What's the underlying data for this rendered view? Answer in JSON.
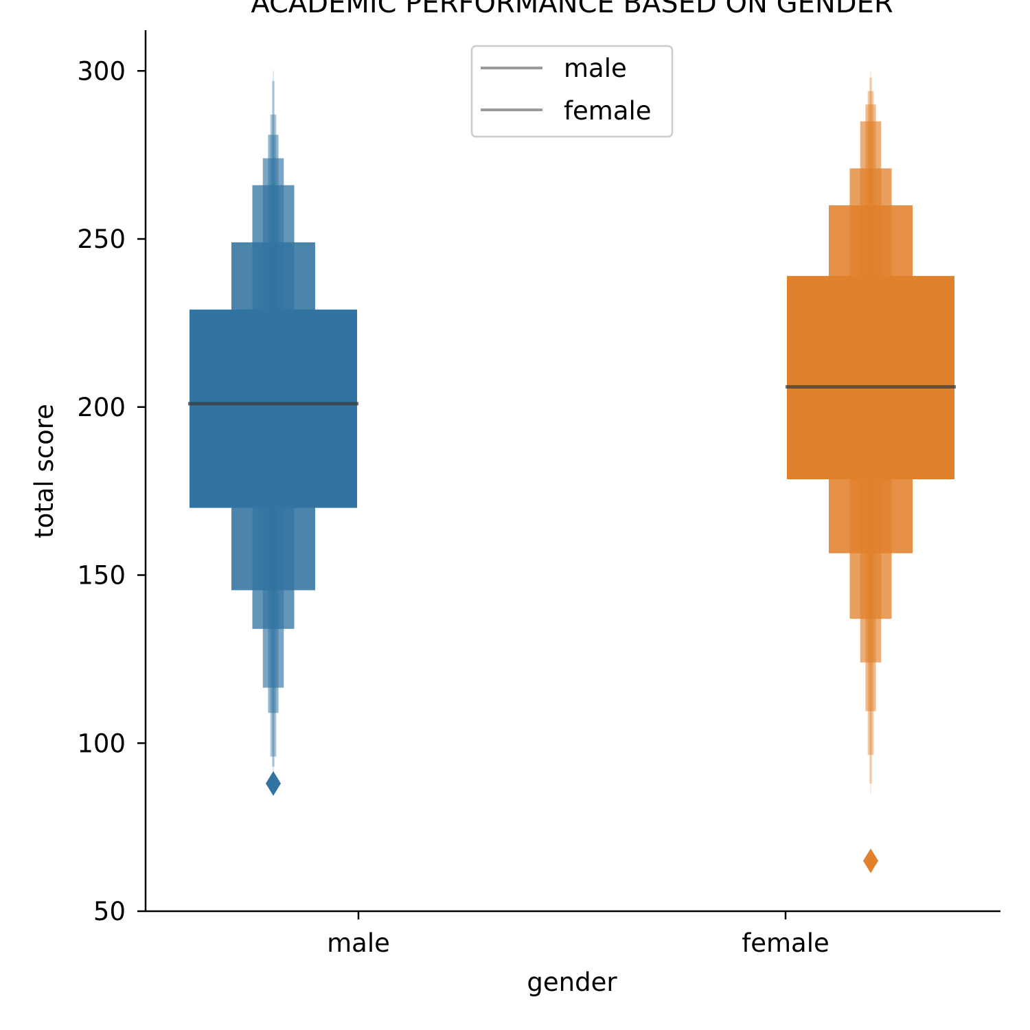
{
  "chart_data": {
    "type": "boxen",
    "title": "ACADEMIC PERFORMANCE BASED ON GENDER",
    "xlabel": "gender",
    "ylabel": "total score",
    "categories": [
      "male",
      "female"
    ],
    "ylim": [
      50,
      312
    ],
    "yticks": [
      50,
      100,
      150,
      200,
      250,
      300
    ],
    "grid": false,
    "legend": {
      "placement": "top-center",
      "entries": [
        "male",
        "female"
      ],
      "line_color": "#999999"
    },
    "series": [
      {
        "category": "male",
        "color": "#3274a1",
        "median": 201,
        "levels": [
          {
            "lo": 170,
            "hi": 229
          },
          {
            "lo": 145.5,
            "hi": 249
          },
          {
            "lo": 134,
            "hi": 266
          },
          {
            "lo": 116.5,
            "hi": 274
          },
          {
            "lo": 109,
            "hi": 281
          },
          {
            "lo": 96,
            "hi": 287
          },
          {
            "lo": 93,
            "hi": 297
          },
          {
            "lo": 91,
            "hi": 300
          }
        ],
        "outliers": [
          88
        ]
      },
      {
        "category": "female",
        "color": "#e1812c",
        "median": 206,
        "levels": [
          {
            "lo": 178.5,
            "hi": 239
          },
          {
            "lo": 156.5,
            "hi": 260
          },
          {
            "lo": 137,
            "hi": 271
          },
          {
            "lo": 124,
            "hi": 285
          },
          {
            "lo": 109.5,
            "hi": 290
          },
          {
            "lo": 96.5,
            "hi": 294
          },
          {
            "lo": 88,
            "hi": 298
          },
          {
            "lo": 85,
            "hi": 300
          }
        ],
        "outliers": [
          65
        ]
      }
    ]
  }
}
